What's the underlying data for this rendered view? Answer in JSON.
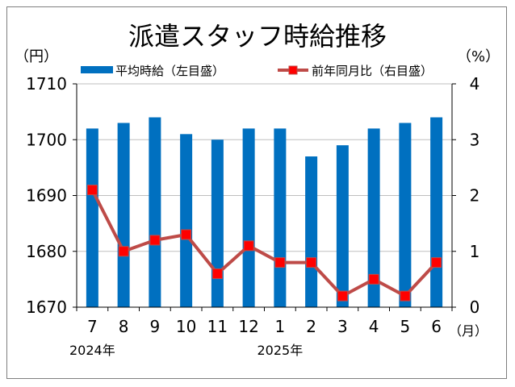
{
  "chart_data": {
    "type": "bar+line",
    "title": "派遣スタッフ時給推移",
    "left_unit": "（円）",
    "right_unit": "（%）",
    "x_unit": "（月）",
    "categories": [
      "7",
      "8",
      "9",
      "10",
      "11",
      "12",
      "1",
      "2",
      "3",
      "4",
      "5",
      "6"
    ],
    "year_labels": [
      {
        "index": 0,
        "label": "2024年"
      },
      {
        "index": 6,
        "label": "2025年"
      }
    ],
    "left_axis": {
      "min": 1670,
      "max": 1710,
      "ticks": [
        "1670",
        "1680",
        "1690",
        "1700",
        "1710"
      ]
    },
    "right_axis": {
      "min": 0,
      "max": 4,
      "ticks": [
        "0",
        "1",
        "2",
        "3",
        "4"
      ]
    },
    "series": [
      {
        "name": "平均時給（左目盛）",
        "kind": "bar",
        "axis": "left",
        "color": "#0070c0",
        "values": [
          1702,
          1703,
          1704,
          1701,
          1700,
          1702,
          1702,
          1697,
          1699,
          1702,
          1703,
          1704
        ]
      },
      {
        "name": "前年同月比（右目盛）",
        "kind": "line",
        "axis": "right",
        "color": "#be4b48",
        "marker_color": "#ff0000",
        "values": [
          2.1,
          1.0,
          1.2,
          1.3,
          0.6,
          1.1,
          0.8,
          0.8,
          0.2,
          0.5,
          0.2,
          0.8
        ]
      }
    ],
    "grid": true,
    "legend": "top"
  }
}
